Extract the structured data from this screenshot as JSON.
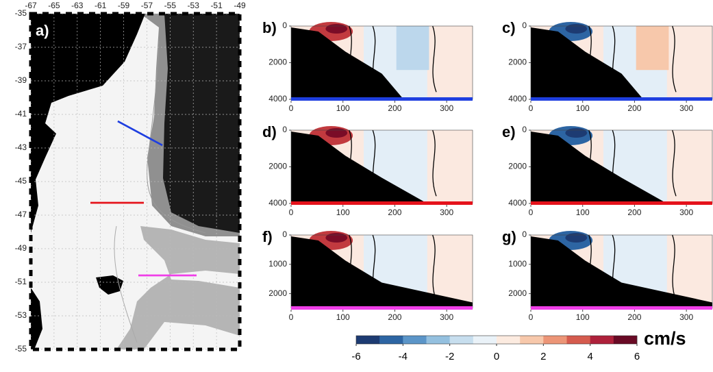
{
  "map": {
    "label": "a)",
    "lon_ticks": [
      -67,
      -65,
      -63,
      -61,
      -59,
      -57,
      -55,
      -53,
      -51,
      -49
    ],
    "lat_ticks": [
      -35,
      -37,
      -39,
      -41,
      -43,
      -45,
      -47,
      -49,
      -51,
      -53,
      -55
    ]
  },
  "sections": [
    {
      "label": "b)",
      "xticks": [
        0,
        100,
        200,
        300
      ],
      "yticks": [
        0,
        2000,
        4000
      ],
      "transect_color": "#1f3fe0"
    },
    {
      "label": "c)",
      "xticks": [
        0,
        100,
        200,
        300
      ],
      "yticks": [
        0,
        2000,
        4000
      ],
      "transect_color": "#1f3fe0"
    },
    {
      "label": "d)",
      "xticks": [
        0,
        100,
        200,
        300
      ],
      "yticks": [
        0,
        2000,
        4000
      ],
      "transect_color": "#e5121b"
    },
    {
      "label": "e)",
      "xticks": [
        0,
        100,
        200,
        300
      ],
      "yticks": [
        0,
        2000,
        4000
      ],
      "transect_color": "#e5121b"
    },
    {
      "label": "f)",
      "xticks": [
        0,
        100,
        200,
        300
      ],
      "yticks": [
        0,
        1000,
        2000
      ],
      "transect_color": "#f03ee8"
    },
    {
      "label": "g)",
      "xticks": [
        0,
        100,
        200,
        300
      ],
      "yticks": [
        0,
        1000,
        2000
      ],
      "transect_color": "#f03ee8"
    }
  ],
  "colorbar": {
    "ticks": [
      -6,
      -4,
      -2,
      0,
      2,
      4,
      6
    ],
    "unit": "cm/s",
    "colors": [
      "#1d3b72",
      "#2d65a3",
      "#5b95c8",
      "#94c0df",
      "#c7deee",
      "#eaf2f8",
      "#fcebe0",
      "#f7c8ab",
      "#ec9577",
      "#d55b4e",
      "#ae213b",
      "#690a25"
    ]
  }
}
